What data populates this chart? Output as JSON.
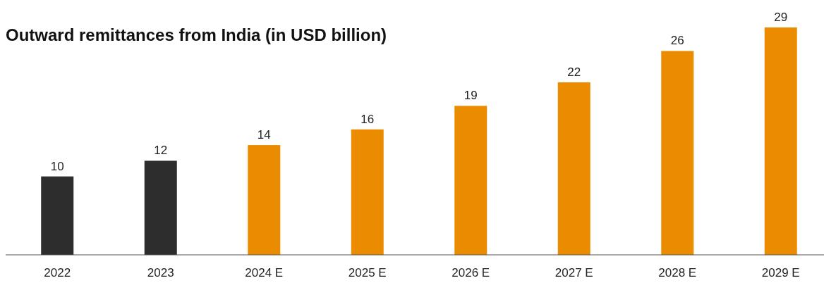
{
  "chart_data": {
    "type": "bar",
    "title": "Outward remittances from India (in USD billion)",
    "categories": [
      "2022",
      "2023",
      "2024 E",
      "2025 E",
      "2026 E",
      "2027 E",
      "2028 E",
      "2029 E"
    ],
    "values": [
      10,
      12,
      14,
      16,
      19,
      22,
      26,
      29
    ],
    "colors": [
      "#2d2d2d",
      "#2d2d2d",
      "#eb8c00",
      "#eb8c00",
      "#eb8c00",
      "#eb8c00",
      "#eb8c00",
      "#eb8c00"
    ],
    "data_labels": true
  }
}
